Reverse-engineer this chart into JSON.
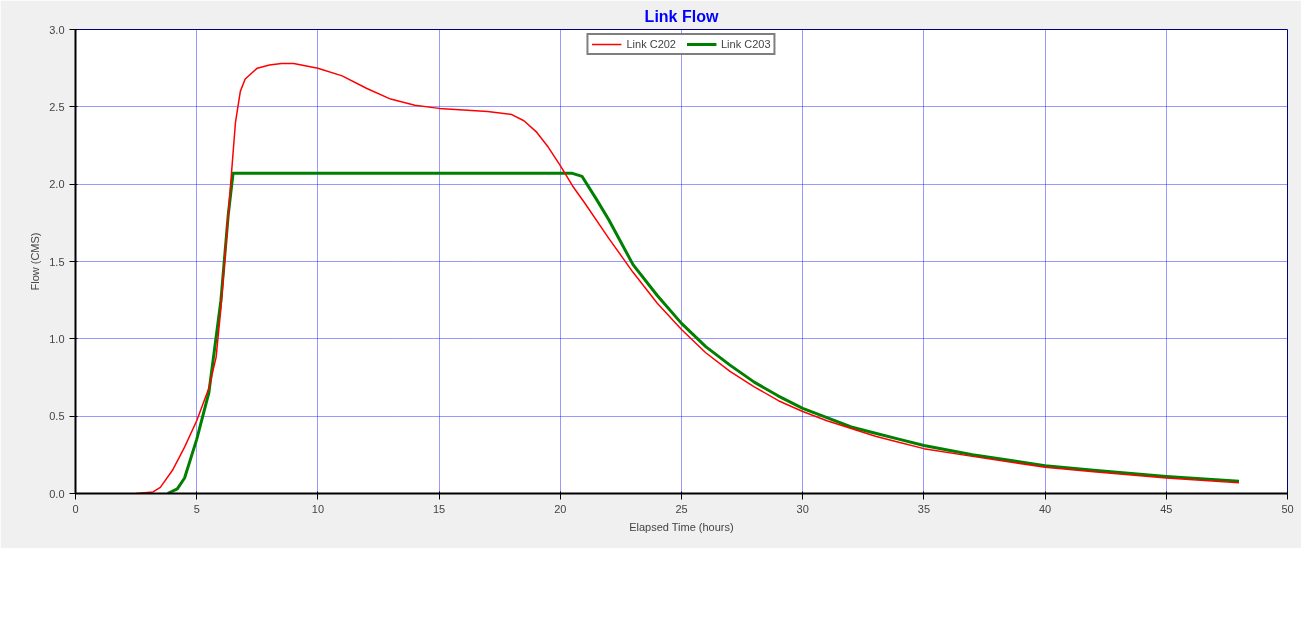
{
  "chart_data": {
    "type": "line",
    "title": "Link Flow",
    "xlabel": "Elapsed Time (hours)",
    "ylabel": "Flow (CMS)",
    "xlim": [
      0,
      50
    ],
    "ylim": [
      0,
      3
    ],
    "xticks": [
      0,
      5,
      10,
      15,
      20,
      25,
      30,
      35,
      40,
      45,
      50
    ],
    "yticks": [
      {
        "value": 0,
        "label": "0.0"
      },
      {
        "value": 0.5,
        "label": "0.5"
      },
      {
        "value": 1,
        "label": "1.0"
      },
      {
        "value": 1.5,
        "label": "1.5"
      },
      {
        "value": 2,
        "label": "2.0"
      },
      {
        "value": 2.5,
        "label": "2.5"
      },
      {
        "value": 3,
        "label": "3.0"
      }
    ],
    "grid": true,
    "legend": "top",
    "marker": "none",
    "line_style": "solid",
    "series": [
      {
        "name": "Link C202",
        "color": "#ff0000",
        "x": [
          2.5,
          3.2,
          3.5,
          4,
          4.5,
          5,
          5.5,
          5.8,
          6,
          6.2,
          6.4,
          6.6,
          6.8,
          7,
          7.5,
          8,
          8.5,
          9,
          10,
          11,
          12,
          13,
          14,
          15,
          16,
          17,
          18,
          18.5,
          19,
          19.5,
          20,
          20.5,
          21,
          22,
          23,
          24,
          25,
          26,
          27,
          28,
          29,
          30,
          31,
          32,
          33,
          34,
          35,
          37,
          40,
          42,
          45,
          48
        ],
        "values": [
          0,
          0.01,
          0.04,
          0.15,
          0.3,
          0.47,
          0.68,
          0.88,
          1.2,
          1.6,
          2.0,
          2.4,
          2.6,
          2.68,
          2.75,
          2.77,
          2.78,
          2.78,
          2.75,
          2.7,
          2.62,
          2.55,
          2.51,
          2.49,
          2.48,
          2.47,
          2.45,
          2.41,
          2.34,
          2.24,
          2.12,
          1.99,
          1.88,
          1.65,
          1.43,
          1.23,
          1.06,
          0.91,
          0.79,
          0.69,
          0.6,
          0.53,
          0.47,
          0.42,
          0.37,
          0.33,
          0.29,
          0.24,
          0.17,
          0.14,
          0.1,
          0.07
        ]
      },
      {
        "name": "Link C203",
        "color": "#008000",
        "x": [
          3.8,
          4.2,
          4.5,
          4.8,
          5,
          5.5,
          6,
          6.3,
          6.5,
          20.5,
          20.9,
          21.5,
          22,
          23,
          24,
          25,
          26,
          27,
          28,
          29,
          30,
          31,
          32,
          33,
          34,
          35,
          37,
          40,
          42,
          45,
          48
        ],
        "values": [
          0,
          0.03,
          0.1,
          0.25,
          0.35,
          0.65,
          1.25,
          1.8,
          2.07,
          2.07,
          2.05,
          1.9,
          1.77,
          1.48,
          1.28,
          1.1,
          0.95,
          0.83,
          0.72,
          0.63,
          0.55,
          0.49,
          0.43,
          0.39,
          0.35,
          0.31,
          0.25,
          0.18,
          0.15,
          0.11,
          0.08
        ]
      }
    ]
  }
}
